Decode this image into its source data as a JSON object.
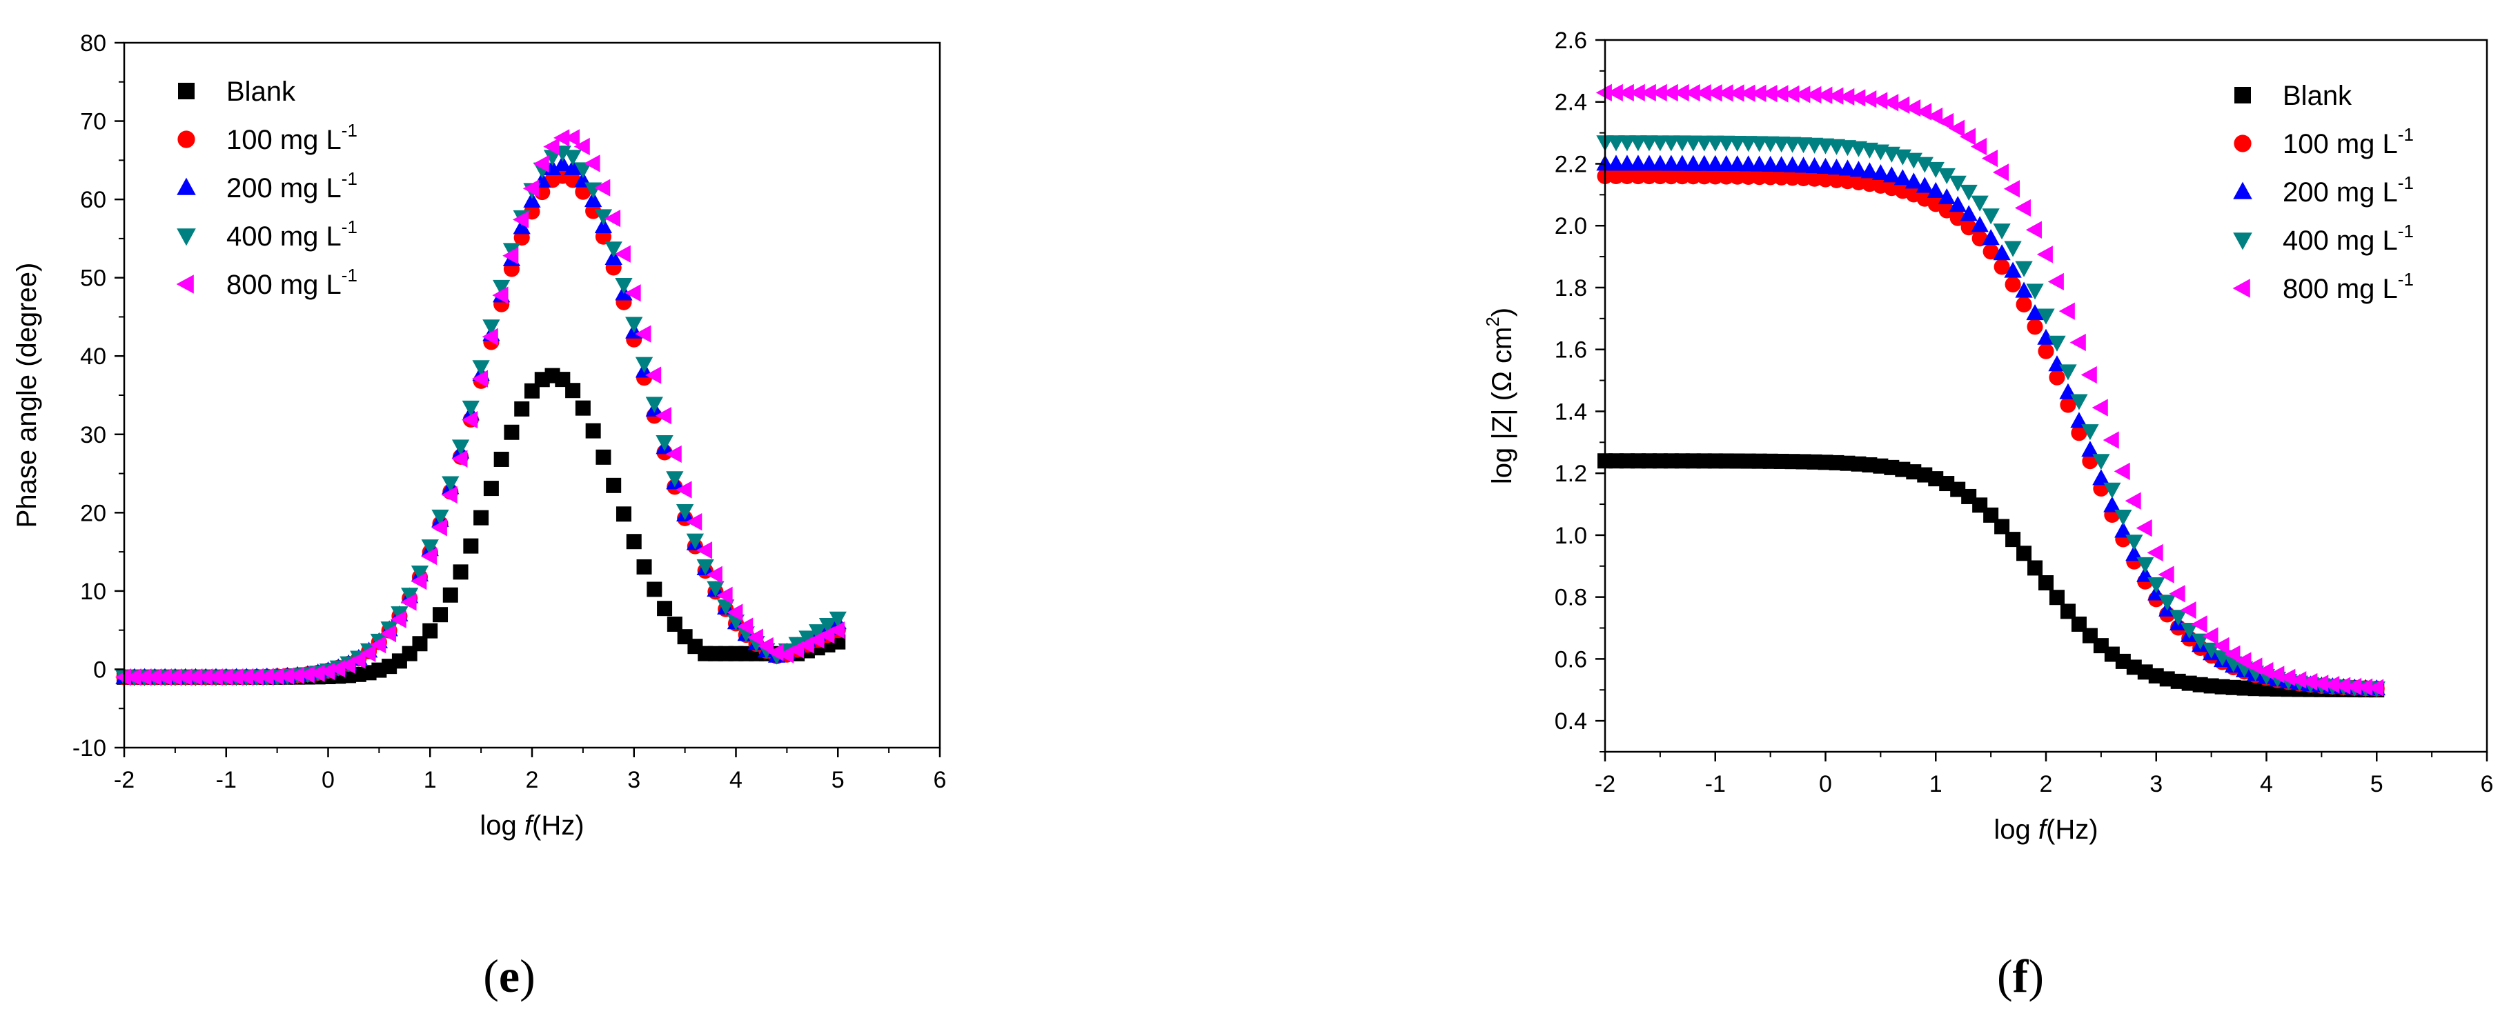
{
  "chart_data": [
    {
      "type": "scatter",
      "panel": "e",
      "xlabel_parts": [
        "log ",
        "f",
        "(Hz)"
      ],
      "ylabel": "Phase angle (degree)",
      "xlim": [
        -2,
        6
      ],
      "ylim": [
        -10,
        80
      ],
      "xticks": [
        -2,
        -1,
        0,
        1,
        2,
        3,
        4,
        5,
        6
      ],
      "yticks": [
        -10,
        0,
        10,
        20,
        30,
        40,
        50,
        60,
        70,
        80
      ],
      "legend_position": "top-left",
      "series": [
        {
          "name": "Blank",
          "unit_sup": "",
          "marker": "square",
          "color": "#000000",
          "peak_x": 2.2,
          "peak_y": 37.5,
          "low_y": -1.0,
          "high_y": 3.5,
          "min_x": 4.6,
          "min_y": 2.0
        },
        {
          "name": "100 mg L",
          "unit_sup": "-1",
          "marker": "circle",
          "color": "#ff0000",
          "peak_x": 2.3,
          "peak_y": 63.0,
          "low_y": -1.0,
          "high_y": 5.0
        },
        {
          "name": "200 mg L",
          "unit_sup": "-1",
          "marker": "triangle-up",
          "color": "#0000ff",
          "peak_x": 2.3,
          "peak_y": 64.5,
          "low_y": -1.0,
          "high_y": 6.0
        },
        {
          "name": "400 mg L",
          "unit_sup": "-1",
          "marker": "triangle-down",
          "color": "#008080",
          "peak_x": 2.3,
          "peak_y": 66.0,
          "low_y": -1.0,
          "high_y": 6.5
        },
        {
          "name": "800 mg L",
          "unit_sup": "-1",
          "marker": "triangle-left",
          "color": "#ff00ff",
          "peak_x": 2.35,
          "peak_y": 68.0,
          "low_y": -1.0,
          "high_y": 5.0
        }
      ]
    },
    {
      "type": "scatter",
      "panel": "f",
      "xlabel_parts": [
        "log ",
        "f",
        "(Hz)"
      ],
      "ylabel_parts": [
        "log |Z| (Ω cm",
        "2",
        ")"
      ],
      "xlim": [
        -2,
        6
      ],
      "ylim": [
        0.3,
        2.6
      ],
      "xticks": [
        -2,
        -1,
        0,
        1,
        2,
        3,
        4,
        5,
        6
      ],
      "yticks": [
        0.4,
        0.6,
        0.8,
        1.0,
        1.2,
        1.4,
        1.6,
        1.8,
        2.0,
        2.2,
        2.4,
        2.6
      ],
      "legend_position": "top-right",
      "series": [
        {
          "name": "Blank",
          "unit_sup": "",
          "marker": "square",
          "color": "#000000",
          "high_y": 1.24,
          "low_y": 0.5,
          "mid_x": 1.95
        },
        {
          "name": "100 mg L",
          "unit_sup": "-1",
          "marker": "circle",
          "color": "#ff0000",
          "high_y": 2.16,
          "low_y": 0.5,
          "mid_x": 2.3
        },
        {
          "name": "200 mg L",
          "unit_sup": "-1",
          "marker": "triangle-up",
          "color": "#0000ff",
          "high_y": 2.2,
          "low_y": 0.5,
          "mid_x": 2.32
        },
        {
          "name": "400 mg L",
          "unit_sup": "-1",
          "marker": "triangle-down",
          "color": "#008080",
          "high_y": 2.27,
          "low_y": 0.5,
          "mid_x": 2.35
        },
        {
          "name": "800 mg L",
          "unit_sup": "-1",
          "marker": "triangle-left",
          "color": "#ff00ff",
          "high_y": 2.43,
          "low_y": 0.5,
          "mid_x": 2.45
        }
      ]
    }
  ],
  "panel_labels": [
    "e",
    "f"
  ]
}
